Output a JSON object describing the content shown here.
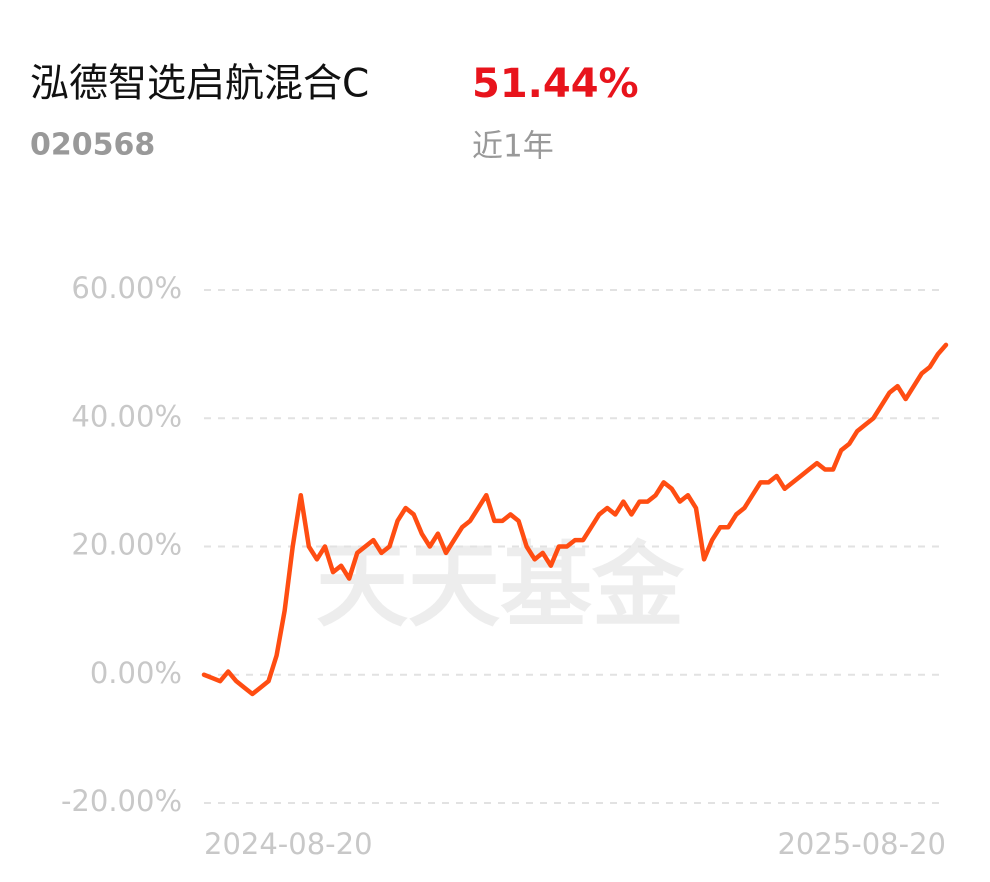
{
  "header": {
    "title": "泓德智选启航混合C",
    "return": "51.44%",
    "code": "020568",
    "period": "近1年"
  },
  "chart_data": {
    "type": "line",
    "watermark": "天天基金",
    "color": "#ff4d12",
    "grid": true,
    "values": [
      0,
      -0.5,
      -1,
      0.5,
      -1,
      -2,
      -3,
      -2,
      -1,
      3,
      10,
      20,
      28,
      20,
      18,
      20,
      16,
      17,
      15,
      19,
      20,
      21,
      19,
      20,
      24,
      26,
      25,
      22,
      20,
      22,
      19,
      21,
      23,
      24,
      26,
      28,
      24,
      24,
      25,
      24,
      20,
      18,
      19,
      17,
      20,
      20,
      21,
      21,
      23,
      25,
      26,
      25,
      27,
      25,
      27,
      27,
      28,
      30,
      29,
      27,
      28,
      26,
      18,
      21,
      23,
      23,
      25,
      26,
      28,
      30,
      30,
      31,
      29,
      30,
      31,
      32,
      33,
      32,
      32,
      35,
      36,
      38,
      39,
      40,
      42,
      44,
      45,
      43,
      45,
      47,
      48,
      50,
      51.44
    ],
    "xlim": [
      0,
      92
    ],
    "xticks": [
      {
        "value": 0,
        "label": "2024-08-20"
      },
      {
        "value": 92,
        "label": "2025-08-20"
      }
    ],
    "ylim": [
      -20,
      60
    ],
    "yticks": [
      {
        "value": 60,
        "label": "60.00%"
      },
      {
        "value": 40,
        "label": "40.00%"
      },
      {
        "value": 20,
        "label": "20.00%"
      },
      {
        "value": 0,
        "label": "0.00%"
      },
      {
        "value": -20,
        "label": "-20.00%"
      }
    ]
  }
}
